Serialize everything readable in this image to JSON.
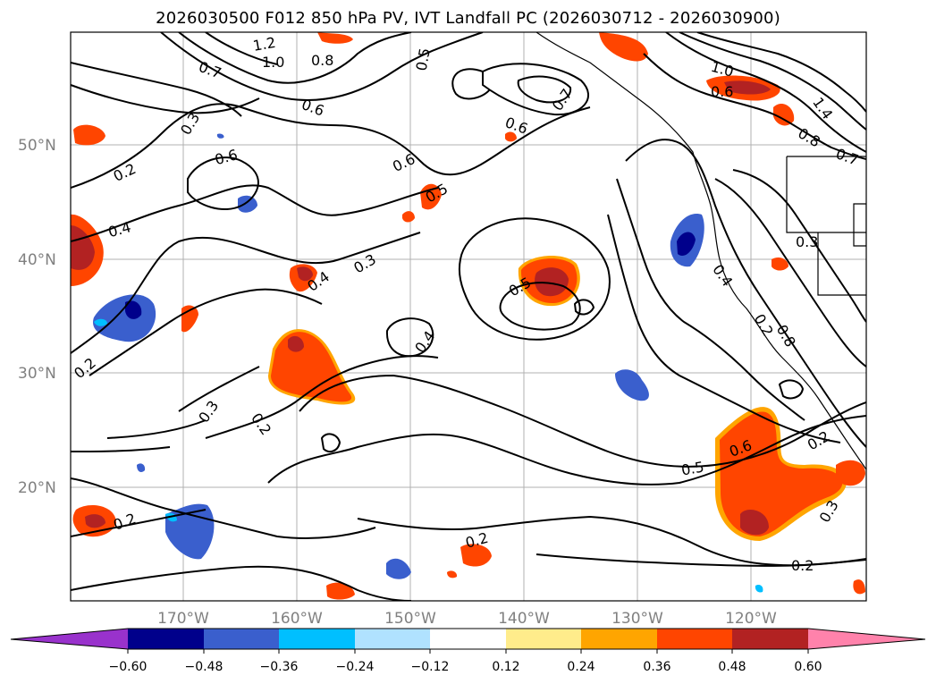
{
  "title": "2026030500 F012 850 hPa PV, IVT Landfall PC (2026030712 - 2026030900)",
  "lat_labels": [
    "50°N",
    "40°N",
    "30°N",
    "20°N"
  ],
  "lon_labels": [
    "170°W",
    "160°W",
    "150°W",
    "140°W",
    "130°W",
    "120°W"
  ],
  "colorbar": {
    "colors": [
      "#9932cc",
      "#00008b",
      "#3a5fcd",
      "#00bfff",
      "#b0e2ff",
      "#ffffff",
      "#ffec8b",
      "#ffa500",
      "#ff4500",
      "#b22222",
      "#ff82ab"
    ],
    "tick_labels": [
      "−0.60",
      "−0.48",
      "−0.36",
      "−0.24",
      "−0.12",
      "0.12",
      "0.24",
      "0.36",
      "0.48",
      "0.60"
    ]
  },
  "contour_labels": [
    "1.2",
    "1.0",
    "0.8",
    "0.7",
    "0.5",
    "0.6",
    "0.7",
    "0.6",
    "0.3",
    "0.6",
    "0.6",
    "0.2",
    "0.5",
    "0.4",
    "0.3",
    "0.4",
    "0.5",
    "0.4",
    "0.3",
    "0.2",
    "0.2",
    "0.2",
    "0.2",
    "0.2",
    "1.0",
    "0.6",
    "1.4",
    "0.8",
    "0.7",
    "0.3",
    "0.4",
    "0.8",
    "0.6",
    "0.5",
    "0.2",
    "0.3",
    "0.2"
  ]
}
